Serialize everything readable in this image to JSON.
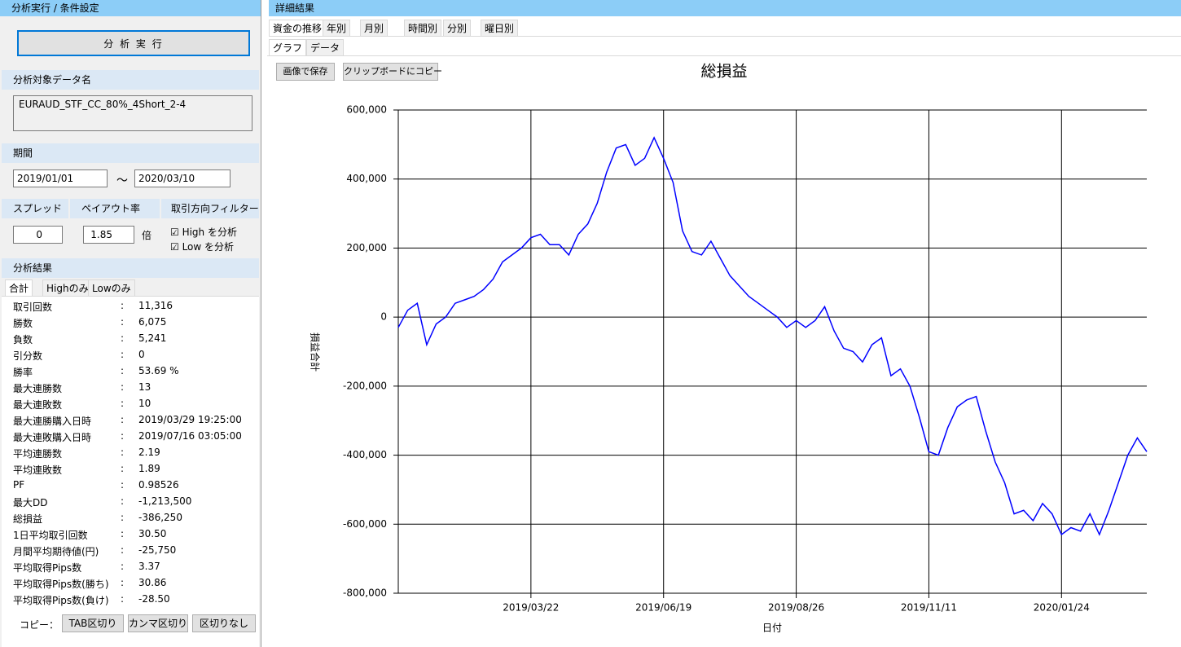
{
  "left": {
    "header": "分析実行 / 条件設定",
    "run_button": "分 析 実 行",
    "data_section": {
      "title": "分析対象データ名",
      "value": "EURAUD_STF_CC_80%_4Short_2-4"
    },
    "period": {
      "title": "期間",
      "from": "2019/01/01",
      "tilde": "～",
      "to": "2020/03/10"
    },
    "spread": {
      "title": "スプレッド",
      "value": "0"
    },
    "payout": {
      "title": "ペイアウト率",
      "value": "1.85",
      "unit": "倍"
    },
    "filter": {
      "title": "取引方向フィルター",
      "high": "High を分析",
      "low": "Low を分析"
    },
    "results": {
      "title": "分析結果",
      "tabs": [
        "合計",
        "Highのみ",
        "Lowのみ"
      ],
      "separator": ":",
      "rows": [
        [
          "取引回数",
          "11,316"
        ],
        [
          "勝数",
          "6,075"
        ],
        [
          "負数",
          "5,241"
        ],
        [
          "引分数",
          "0"
        ],
        [
          "勝率",
          "53.69 %"
        ],
        [
          "最大連勝数",
          "13"
        ],
        [
          "最大連敗数",
          "10"
        ],
        [
          "最大連勝購入日時",
          "2019/03/29 19:25:00"
        ],
        [
          "最大連敗購入日時",
          "2019/07/16 03:05:00"
        ],
        [
          "平均連勝数",
          "2.19"
        ],
        [
          "平均連敗数",
          "1.89"
        ],
        [
          "PF",
          "0.98526"
        ],
        [
          "最大DD",
          "-1,213,500"
        ],
        [
          "総損益",
          "-386,250"
        ],
        [
          "1日平均取引回数",
          "30.50"
        ],
        [
          "月間平均期待値(円)",
          "-25,750"
        ],
        [
          "平均取得Pips数",
          "3.37"
        ],
        [
          "平均取得Pips数(勝ち)",
          "30.86"
        ],
        [
          "平均取得Pips数(負け)",
          "-28.50"
        ]
      ]
    },
    "copy": {
      "label": "コピー：",
      "buttons": [
        "TAB区切り",
        "カンマ区切り",
        "区切りなし"
      ]
    }
  },
  "right": {
    "header": "詳細結果",
    "tabs": [
      "資金の推移",
      "年別",
      "月別",
      "時間別",
      "分別",
      "曜日別"
    ],
    "subtabs": [
      "グラフ",
      "データ"
    ],
    "buttons": [
      "画像で保存",
      "クリップボードにコピー"
    ]
  },
  "chart_data": {
    "type": "line",
    "title": "総損益",
    "x_label": "日付",
    "y_label": "損益合計",
    "color": "#0000ff",
    "grid": true,
    "ylim": [
      -800000,
      600000
    ],
    "yticks": [
      {
        "value": -800000,
        "label": "-800,000"
      },
      {
        "value": -600000,
        "label": "-600,000"
      },
      {
        "value": -400000,
        "label": "-400,000"
      },
      {
        "value": -200000,
        "label": "-200,000"
      },
      0,
      {
        "value": 200000,
        "label": "200,000"
      },
      {
        "value": 400000,
        "label": "400,000"
      },
      {
        "value": 600000,
        "label": "600,000"
      }
    ],
    "categories": [
      null,
      null,
      null,
      null,
      null,
      null,
      null,
      null,
      null,
      null,
      null,
      null,
      null,
      null,
      "2019/03/22",
      null,
      null,
      null,
      null,
      null,
      null,
      null,
      null,
      null,
      null,
      null,
      null,
      null,
      "2019/06/19",
      null,
      null,
      null,
      null,
      null,
      null,
      null,
      null,
      null,
      null,
      null,
      null,
      null,
      "2019/08/26",
      null,
      null,
      null,
      null,
      null,
      null,
      null,
      null,
      null,
      null,
      null,
      null,
      null,
      "2019/11/11",
      null,
      null,
      null,
      null,
      null,
      null,
      null,
      null,
      null,
      null,
      null,
      null,
      null,
      "2020/01/24",
      null,
      null,
      null,
      null,
      null,
      null,
      null,
      null,
      null
    ],
    "values": [
      -30000,
      20000,
      40000,
      -80000,
      -20000,
      0,
      40000,
      50000,
      60000,
      80000,
      110000,
      160000,
      180000,
      200000,
      230000,
      240000,
      210000,
      210000,
      180000,
      240000,
      270000,
      330000,
      420000,
      490000,
      500000,
      440000,
      460000,
      520000,
      460000,
      390000,
      250000,
      190000,
      180000,
      220000,
      170000,
      120000,
      90000,
      60000,
      40000,
      20000,
      0,
      -30000,
      -10000,
      -30000,
      -10000,
      30000,
      -40000,
      -90000,
      -100000,
      -130000,
      -80000,
      -60000,
      -170000,
      -150000,
      -200000,
      -290000,
      -390000,
      -400000,
      -320000,
      -260000,
      -240000,
      -230000,
      -330000,
      -420000,
      -480000,
      -570000,
      -560000,
      -590000,
      -540000,
      -570000,
      -630000,
      -610000,
      -620000,
      -570000,
      -630000,
      -560000,
      -480000,
      -400000,
      -350000,
      -390000
    ]
  }
}
